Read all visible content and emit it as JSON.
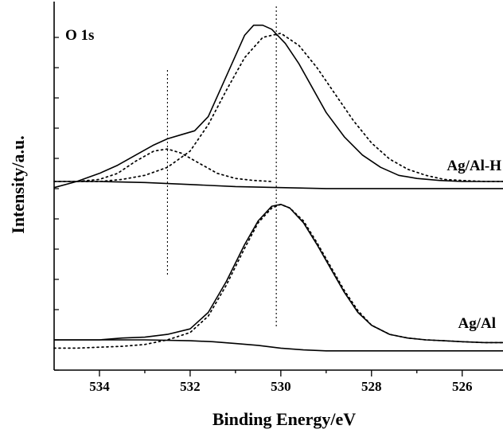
{
  "chart_data": {
    "type": "line",
    "title": "",
    "xlabel": "Binding Energy/eV",
    "ylabel": "Intensity/a.u.",
    "annotation": "O 1s",
    "xlim": [
      535,
      525.1
    ],
    "x_reversed": true,
    "x_ticks": [
      534,
      532,
      530,
      528,
      526
    ],
    "y_ticks": [],
    "grid": false,
    "reference_lines_x": [
      532.5,
      530.1
    ],
    "panels": [
      {
        "label": "Ag/Al-H",
        "series": [
          {
            "style": "solid",
            "x": [
              535,
              534.5,
              534,
              533.6,
              533.2,
              532.8,
              532.5,
              532.2,
              531.9,
              531.6,
              531.3,
              531.0,
              530.8,
              530.6,
              530.4,
              530.2,
              529.9,
              529.6,
              529.3,
              529.0,
              528.6,
              528.2,
              527.8,
              527.4,
              527.0,
              526.5,
              526.0,
              525.5,
              525.1
            ],
            "y": [
              -0.03,
              0.0,
              0.04,
              0.08,
              0.13,
              0.18,
              0.21,
              0.23,
              0.25,
              0.32,
              0.47,
              0.62,
              0.72,
              0.77,
              0.77,
              0.75,
              0.68,
              0.58,
              0.46,
              0.34,
              0.22,
              0.13,
              0.07,
              0.03,
              0.015,
              0.005,
              0.0,
              0.0,
              0.0
            ]
          },
          {
            "style": "solid",
            "x": [
              535,
              534,
              533,
              532,
              531,
              530,
              529,
              528,
              527,
              526,
              525.1
            ],
            "y": [
              0.0,
              0.0,
              -0.005,
              -0.015,
              -0.025,
              -0.03,
              -0.035,
              -0.035,
              -0.035,
              -0.035,
              -0.035
            ]
          },
          {
            "style": "dotted",
            "x": [
              535,
              534.5,
              534,
              533.6,
              533.2,
              532.8,
              532.5,
              532.2,
              531.8,
              531.4,
              531.0,
              530.6,
              530.2
            ],
            "y": [
              0.0,
              0.0,
              0.01,
              0.04,
              0.1,
              0.15,
              0.16,
              0.14,
              0.09,
              0.04,
              0.015,
              0.005,
              0.0
            ]
          },
          {
            "style": "dotted",
            "x": [
              534.5,
              534,
              533.5,
              533,
              532.5,
              532.0,
              531.6,
              531.2,
              530.8,
              530.4,
              530.0,
              529.6,
              529.2,
              528.8,
              528.4,
              528.0,
              527.6,
              527.2,
              526.8,
              526.4,
              526.0,
              525.5,
              525.1
            ],
            "y": [
              0.0,
              0.0,
              0.01,
              0.03,
              0.07,
              0.15,
              0.28,
              0.45,
              0.61,
              0.71,
              0.73,
              0.67,
              0.56,
              0.43,
              0.3,
              0.19,
              0.11,
              0.06,
              0.03,
              0.01,
              0.005,
              0.0,
              0.0
            ]
          }
        ]
      },
      {
        "label": "Ag/Al",
        "series": [
          {
            "style": "solid",
            "x": [
              535,
              534,
              533.5,
              533.0,
              532.5,
              532.0,
              531.6,
              531.2,
              530.8,
              530.5,
              530.2,
              530.0,
              529.8,
              529.5,
              529.2,
              528.9,
              528.6,
              528.3,
              528.0,
              527.6,
              527.2,
              526.8,
              526.4,
              526.0,
              525.5,
              525.1
            ],
            "y": [
              0.0,
              0.0,
              0.01,
              0.015,
              0.03,
              0.06,
              0.15,
              0.32,
              0.52,
              0.65,
              0.73,
              0.74,
              0.72,
              0.64,
              0.52,
              0.39,
              0.26,
              0.15,
              0.08,
              0.03,
              0.01,
              0.0,
              -0.005,
              -0.01,
              -0.015,
              -0.015
            ]
          },
          {
            "style": "solid",
            "x": [
              535,
              534,
              533,
              532,
              531.5,
              531,
              530.5,
              530,
              529.5,
              529,
              528,
              527,
              526,
              525.1
            ],
            "y": [
              0.0,
              0.0,
              0.0,
              -0.005,
              -0.01,
              -0.02,
              -0.03,
              -0.045,
              -0.055,
              -0.06,
              -0.06,
              -0.06,
              -0.06,
              -0.06
            ]
          },
          {
            "style": "dotted",
            "x": [
              535,
              534.5,
              534,
              533.5,
              533.0,
              532.5,
              532.0,
              531.6,
              531.2,
              530.8,
              530.5,
              530.2,
              530.0,
              529.8,
              529.5,
              529.2,
              528.9,
              528.6,
              528.3,
              528.0,
              527.6,
              527.2,
              526.8,
              526.4,
              526.0,
              525.5,
              525.1
            ],
            "y": [
              -0.045,
              -0.045,
              -0.04,
              -0.035,
              -0.025,
              0.0,
              0.04,
              0.13,
              0.3,
              0.5,
              0.64,
              0.72,
              0.74,
              0.72,
              0.65,
              0.53,
              0.4,
              0.27,
              0.16,
              0.08,
              0.03,
              0.01,
              0.0,
              -0.005,
              -0.01,
              -0.015,
              -0.015
            ]
          }
        ]
      }
    ]
  }
}
